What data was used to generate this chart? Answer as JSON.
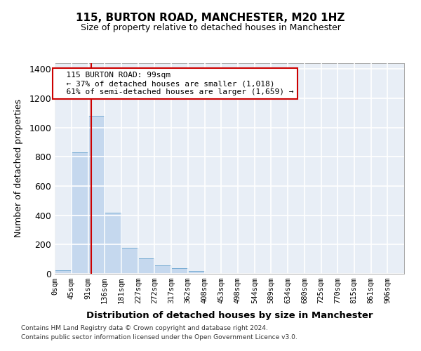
{
  "title1": "115, BURTON ROAD, MANCHESTER, M20 1HZ",
  "title2": "Size of property relative to detached houses in Manchester",
  "xlabel": "Distribution of detached houses by size in Manchester",
  "ylabel": "Number of detached properties",
  "footnote1": "Contains HM Land Registry data © Crown copyright and database right 2024.",
  "footnote2": "Contains public sector information licensed under the Open Government Licence v3.0.",
  "annotation_line1": "115 BURTON ROAD: 99sqm",
  "annotation_line2": "← 37% of detached houses are smaller (1,018)",
  "annotation_line3": "61% of semi-detached houses are larger (1,659) →",
  "bar_color": "#c5d8ee",
  "bar_edge_color": "#7aadd4",
  "bg_color": "#e8eef6",
  "grid_color": "#ffffff",
  "red_line_color": "#cc0000",
  "bin_edges": [
    0,
    45,
    91,
    136,
    181,
    227,
    272,
    317,
    362,
    408,
    453,
    498,
    544,
    589,
    634,
    680,
    725,
    770,
    815,
    861,
    906
  ],
  "bar_heights": [
    25,
    830,
    1080,
    420,
    180,
    105,
    60,
    40,
    20,
    0,
    0,
    0,
    0,
    0,
    0,
    0,
    0,
    0,
    0,
    0
  ],
  "property_size": 99,
  "ylim": [
    0,
    1440
  ],
  "xlim": [
    0,
    951
  ],
  "yticks": [
    0,
    200,
    400,
    600,
    800,
    1000,
    1200,
    1400
  ]
}
